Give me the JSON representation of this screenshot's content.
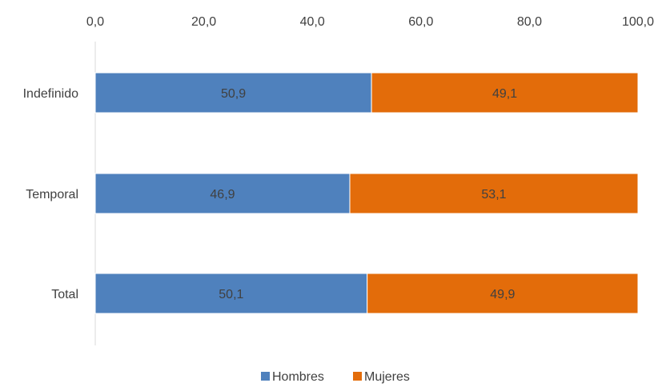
{
  "chart_data": {
    "type": "bar",
    "orientation": "horizontal",
    "stacked": true,
    "categories": [
      "Indefinido",
      "Temporal",
      "Total"
    ],
    "series": [
      {
        "name": "Hombres",
        "values": [
          50.9,
          46.9,
          50.1
        ],
        "color": "#4F81BD",
        "labels": [
          "50,9",
          "46,9",
          "50,1"
        ]
      },
      {
        "name": "Mujeres",
        "values": [
          49.1,
          53.1,
          49.9
        ],
        "color": "#E36C0A",
        "labels": [
          "49,1",
          "53,1",
          "49,9"
        ]
      }
    ],
    "xlim": [
      0,
      100
    ],
    "xticks": [
      0,
      20,
      40,
      60,
      80,
      100
    ],
    "xtick_labels": [
      "0,0",
      "20,0",
      "40,0",
      "60,0",
      "80,0",
      "100,0"
    ],
    "x_axis_position": "top",
    "grid": false,
    "legend_position": "bottom"
  }
}
